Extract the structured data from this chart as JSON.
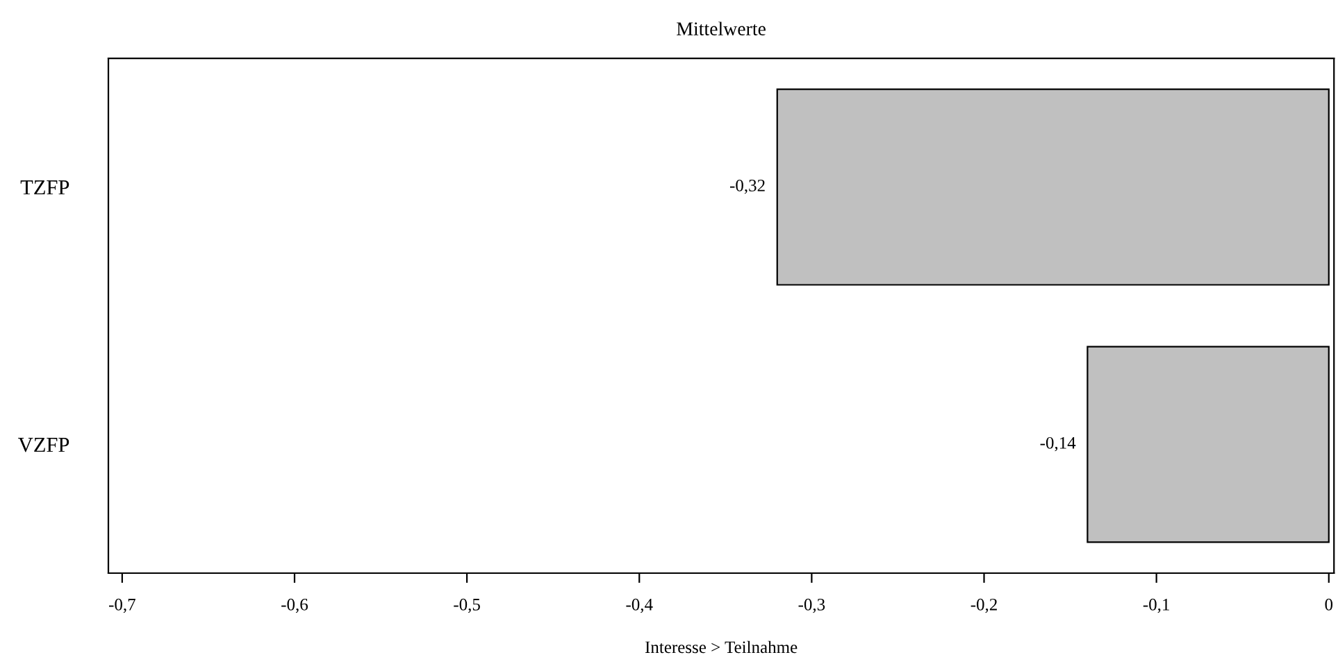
{
  "chart_data": {
    "type": "bar",
    "orientation": "horizontal",
    "title": "Mittelwerte",
    "xlabel": "Interesse > Teilnahme",
    "categories": [
      "TZFP",
      "VZFP"
    ],
    "values": [
      -0.32,
      -0.14
    ],
    "value_labels": [
      "-0,32",
      "-0,14"
    ],
    "color": "#c0c0c0",
    "xlim": [
      -0.708,
      0.003
    ],
    "xticks": [
      {
        "value": -0.7,
        "label": "-0,7"
      },
      {
        "value": -0.6,
        "label": "-0,6"
      },
      {
        "value": -0.5,
        "label": "-0,5"
      },
      {
        "value": -0.4,
        "label": "-0,4"
      },
      {
        "value": -0.3,
        "label": "-0,3"
      },
      {
        "value": -0.2,
        "label": "-0,2"
      },
      {
        "value": -0.1,
        "label": "-0,1"
      },
      {
        "value": 0,
        "label": "0"
      }
    ],
    "grid": false
  }
}
